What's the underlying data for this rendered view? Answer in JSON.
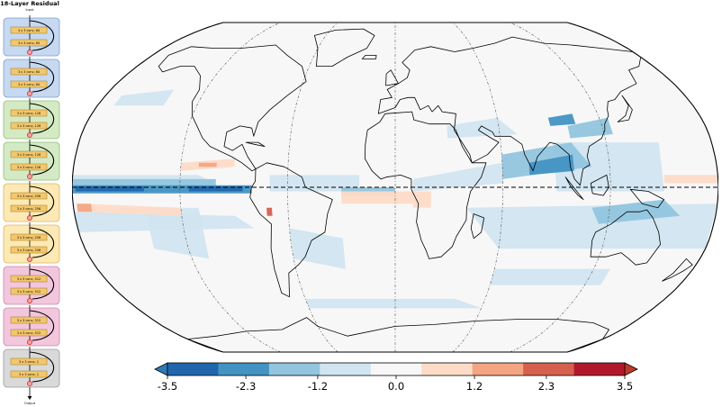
{
  "diagram": {
    "title": "18-Layer Residual",
    "input_label": "Input",
    "output_label": "Output",
    "blocks": [
      {
        "layers": [
          "3 x 3 conv, 64",
          "3 x 3 conv, 64"
        ],
        "color": "#c6d9f1",
        "edge": "#7f9fcf"
      },
      {
        "layers": [
          "3 x 3 conv, 64",
          "3 x 3 conv, 64"
        ],
        "color": "#c6d9f1",
        "edge": "#7f9fcf"
      },
      {
        "layers": [
          "3 x 3 conv, 128",
          "3 x 3 conv, 128"
        ],
        "color": "#d4eac4",
        "edge": "#8fbf7a"
      },
      {
        "layers": [
          "3 x 3 conv, 128",
          "3 x 3 conv, 128"
        ],
        "color": "#d4eac4",
        "edge": "#8fbf7a"
      },
      {
        "layers": [
          "3 x 3 conv, 256",
          "3 x 3 conv, 256"
        ],
        "color": "#fde9b4",
        "edge": "#d8b564"
      },
      {
        "layers": [
          "3 x 3 conv, 256",
          "3 x 3 conv, 256"
        ],
        "color": "#fde9b4",
        "edge": "#d8b564"
      },
      {
        "layers": [
          "3 x 3 conv, 512",
          "3 x 3 conv, 512"
        ],
        "color": "#f2c6dc",
        "edge": "#c98aa8"
      },
      {
        "layers": [
          "3 x 3 conv, 512",
          "3 x 3 conv, 512"
        ],
        "color": "#f2c6dc",
        "edge": "#c98aa8"
      },
      {
        "layers": [
          "3 x 3 conv, 1",
          "3 x 3 conv, 1"
        ],
        "color": "#d9d9d9",
        "edge": "#9a9a9a"
      }
    ]
  },
  "map": {
    "projection": "robinson",
    "ocean_color": "#f7f7f7",
    "colors": {
      "strong_blue": "#2166ac",
      "mid_blue": "#4393c3",
      "light_blue": "#92c5de",
      "pale_blue": "#d1e5f0",
      "pale_red": "#fddbc7",
      "light_red": "#f4a582",
      "mid_red": "#d6604d",
      "strong_red": "#b2182b"
    }
  },
  "colorbar": {
    "colors": [
      "#2166ac",
      "#4393c3",
      "#92c5de",
      "#d1e5f0",
      "#f7f7f7",
      "#fddbc7",
      "#f4a582",
      "#d6604d",
      "#b2182b"
    ],
    "ticks": [
      {
        "value": -3.5,
        "label": "-3.5"
      },
      {
        "value": -2.3,
        "label": "-2.3"
      },
      {
        "value": -1.2,
        "label": "-1.2"
      },
      {
        "value": 0.0,
        "label": "0.0"
      },
      {
        "value": 1.2,
        "label": "1.2"
      },
      {
        "value": 2.3,
        "label": "2.3"
      },
      {
        "value": 3.5,
        "label": "3.5"
      }
    ],
    "extend_low_color": "#2c7bb6",
    "extend_high_color": "#c0392b"
  }
}
